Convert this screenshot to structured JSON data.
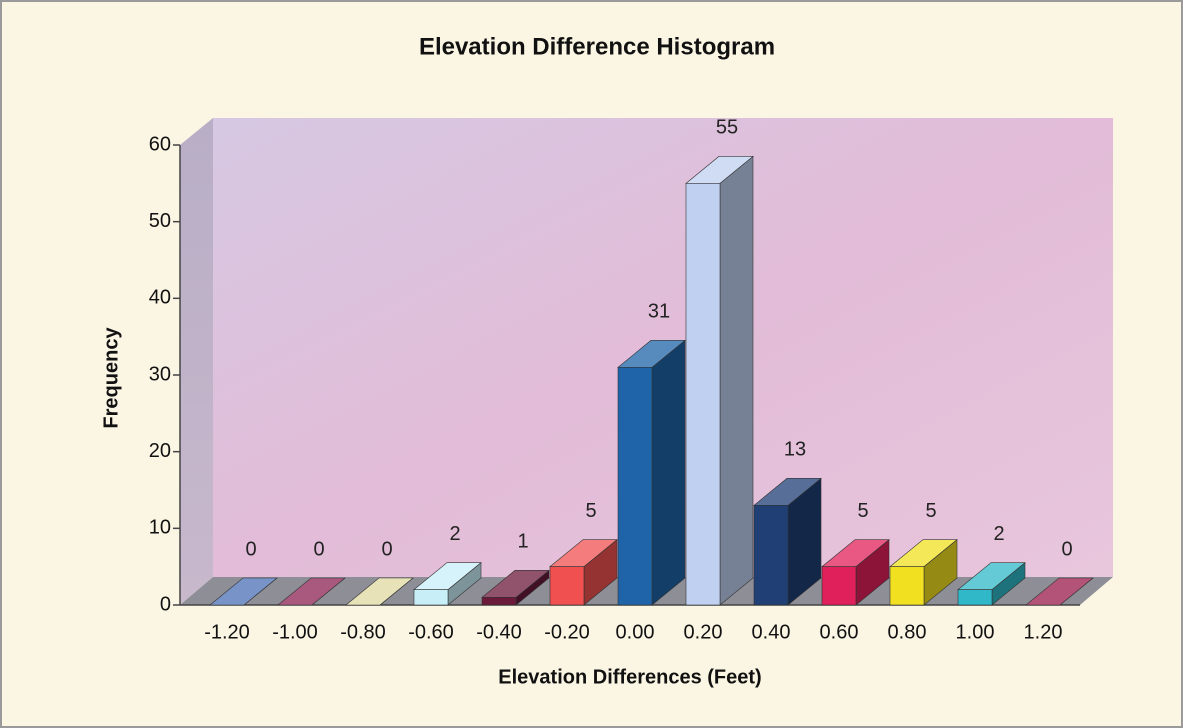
{
  "chart_data": {
    "type": "bar3d",
    "title": "Elevation Difference Histogram",
    "x_label": "Elevation Differences (Feet)",
    "y_label": "Frequency",
    "categories": [
      "-1.20",
      "-1.00",
      "-0.80",
      "-0.60",
      "-0.40",
      "-0.20",
      "0.00",
      "0.20",
      "0.40",
      "0.60",
      "0.80",
      "1.00",
      "1.20"
    ],
    "values": [
      0,
      0,
      0,
      2,
      1,
      5,
      31,
      55,
      13,
      5,
      5,
      2,
      0
    ],
    "colors": [
      "#4a6fb5",
      "#8b2252",
      "#e0d8a0",
      "#c8eef8",
      "#6b1a3a",
      "#f05050",
      "#1f64a8",
      "#c0d0f0",
      "#1f3f75",
      "#e0205a",
      "#f0e020",
      "#30b8c8",
      "#9a1a4a"
    ],
    "ylim": [
      0,
      60
    ],
    "yticks": [
      0,
      10,
      20,
      30,
      40,
      50,
      60
    ],
    "grid": false
  }
}
